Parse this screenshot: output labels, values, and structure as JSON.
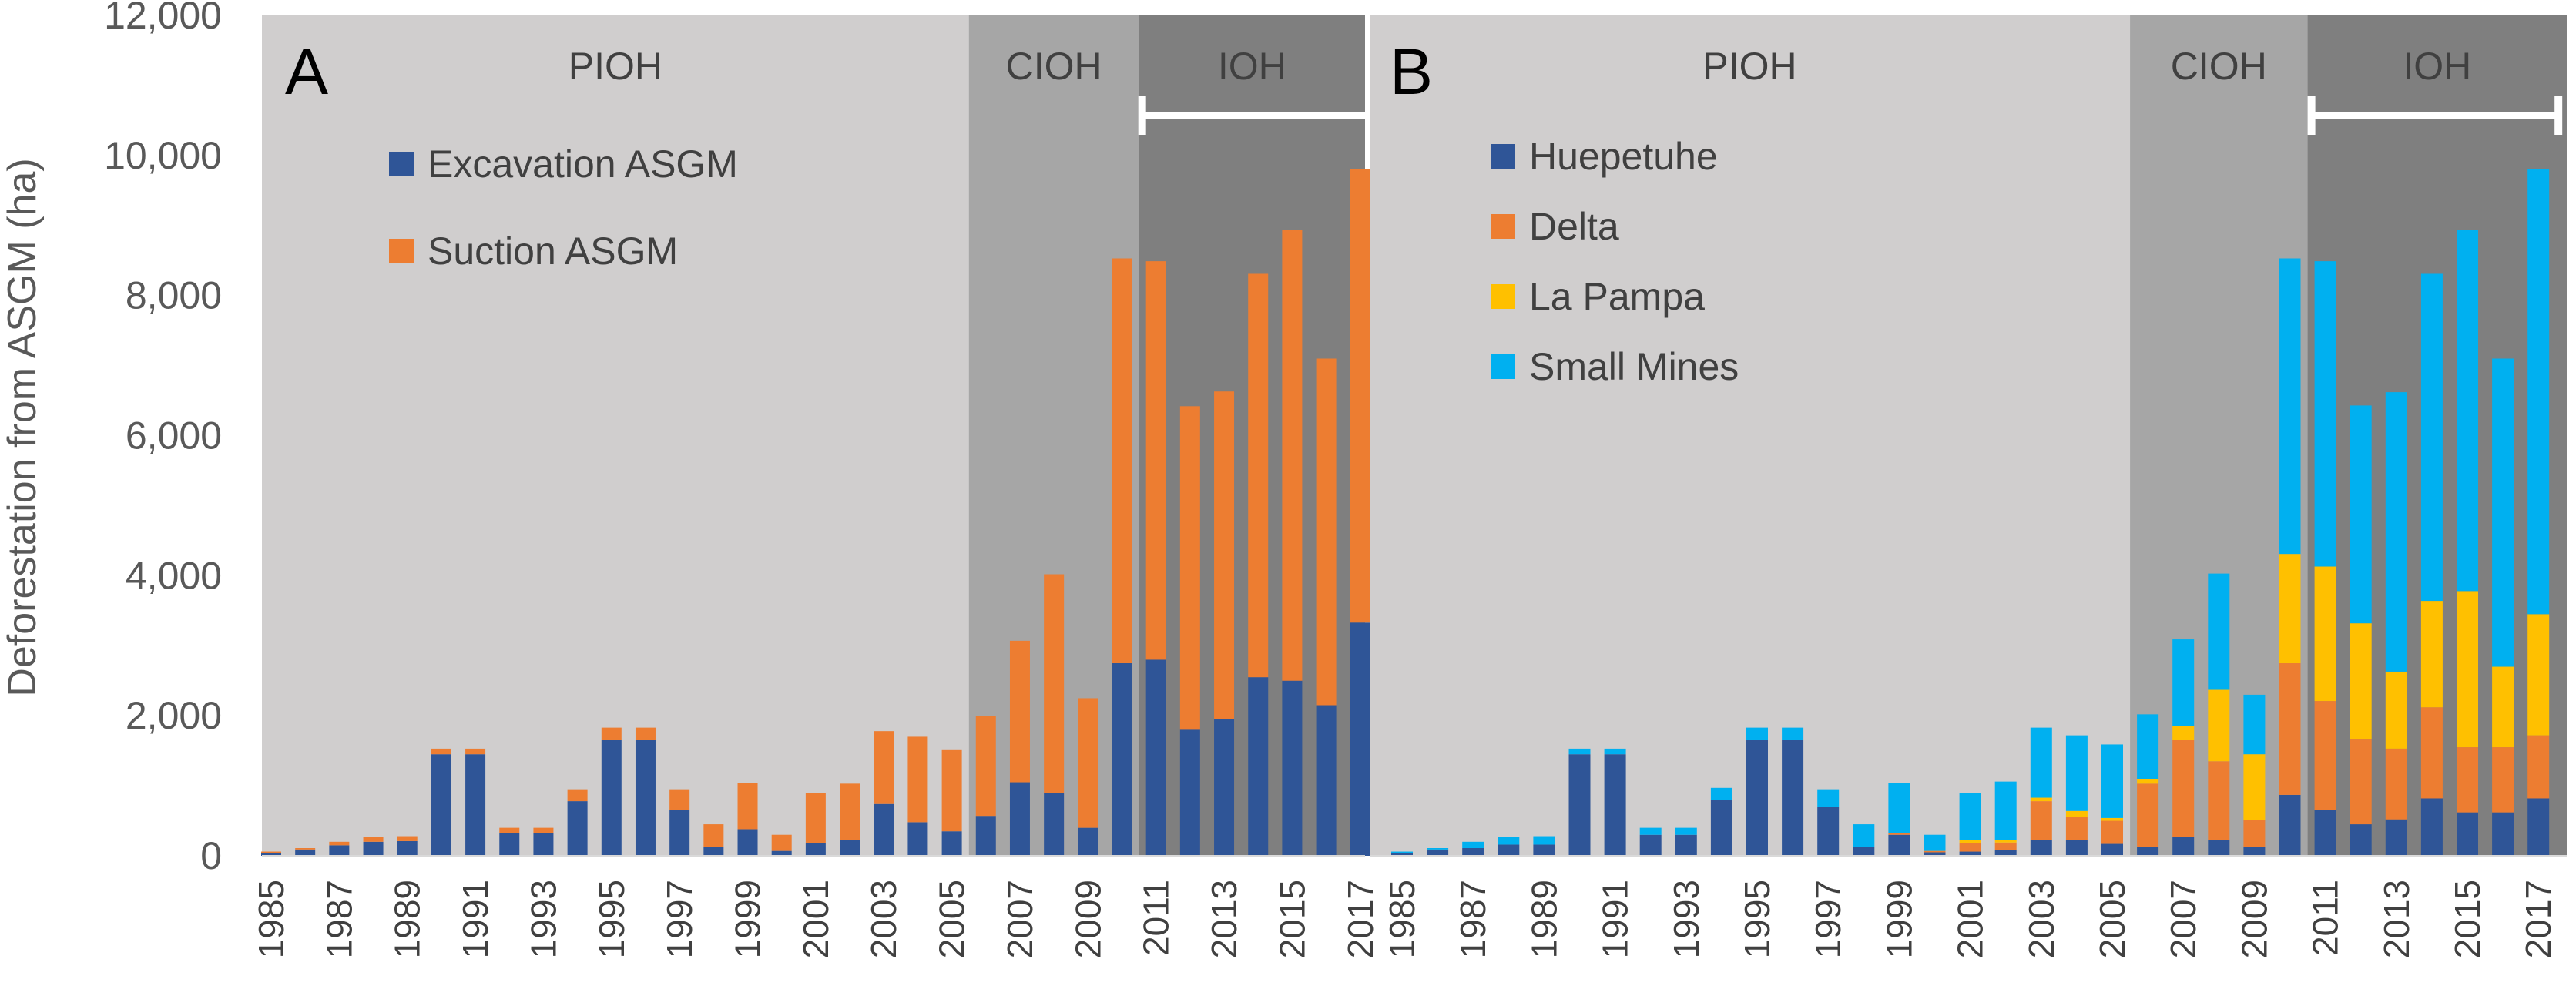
{
  "axis": {
    "ylabel": "Deforestation from ASGM (ha)",
    "ylim": [
      0,
      12000
    ],
    "yticks": [
      "0",
      "2,000",
      "4,000",
      "6,000",
      "8,000",
      "10,000",
      "12,000"
    ]
  },
  "years": [
    1985,
    1986,
    1987,
    1988,
    1989,
    1990,
    1991,
    1992,
    1993,
    1994,
    1995,
    1996,
    1997,
    1998,
    1999,
    2000,
    2001,
    2002,
    2003,
    2004,
    2005,
    2006,
    2007,
    2008,
    2009,
    2010,
    2011,
    2012,
    2013,
    2014,
    2015,
    2016,
    2017
  ],
  "year_tick_labels": [
    "1985",
    "1987",
    "1989",
    "1991",
    "1993",
    "1995",
    "1997",
    "1999",
    "2001",
    "2003",
    "2005",
    "2007",
    "2009",
    "2011",
    "2013",
    "2015",
    "2017"
  ],
  "eras": [
    {
      "label": "PIOH",
      "start_year": 1985,
      "end_year": 2005,
      "color": "#d0cece"
    },
    {
      "label": "CIOH",
      "start_year": 2006,
      "end_year": 2010,
      "color": "#a6a6a6"
    },
    {
      "label": "IOH",
      "start_year": 2011,
      "end_year": 2017,
      "color": "#7f7f7f"
    }
  ],
  "ioh_bracket": {
    "start_year": 2011,
    "end_year": 2017,
    "color": "#ffffff"
  },
  "chart_data": [
    {
      "type": "bar",
      "stacked": true,
      "panel": "A",
      "title": "",
      "xlabel": "",
      "ylabel": "Deforestation from ASGM (ha)",
      "ylim": [
        0,
        12000
      ],
      "legend_position": "top-left",
      "categories": [
        1985,
        1986,
        1987,
        1988,
        1989,
        1990,
        1991,
        1992,
        1993,
        1994,
        1995,
        1996,
        1997,
        1998,
        1999,
        2000,
        2001,
        2002,
        2003,
        2004,
        2005,
        2006,
        2007,
        2008,
        2009,
        2010,
        2011,
        2012,
        2013,
        2014,
        2015,
        2016,
        2017
      ],
      "series": [
        {
          "name": "Excavation ASGM",
          "color": "#2f5597",
          "values": [
            40,
            90,
            150,
            200,
            210,
            1450,
            1450,
            330,
            330,
            780,
            1650,
            1650,
            650,
            130,
            380,
            70,
            180,
            220,
            740,
            480,
            350,
            570,
            1050,
            900,
            400,
            2750,
            2800,
            1800,
            1950,
            2550,
            2500,
            2150,
            3330
          ]
        },
        {
          "name": "Suction ASGM",
          "color": "#ed7d31",
          "values": [
            20,
            20,
            50,
            70,
            70,
            80,
            80,
            70,
            70,
            170,
            180,
            180,
            300,
            320,
            660,
            230,
            720,
            810,
            1040,
            1220,
            1170,
            1430,
            2020,
            3120,
            1850,
            5780,
            5690,
            4620,
            4680,
            5760,
            6440,
            4950,
            6480
          ]
        }
      ]
    },
    {
      "type": "bar",
      "stacked": true,
      "panel": "B",
      "title": "",
      "xlabel": "",
      "ylabel": "",
      "ylim": [
        0,
        12000
      ],
      "legend_position": "top-left",
      "categories": [
        1985,
        1986,
        1987,
        1988,
        1989,
        1990,
        1991,
        1992,
        1993,
        1994,
        1995,
        1996,
        1997,
        1998,
        1999,
        2000,
        2001,
        2002,
        2003,
        2004,
        2005,
        2006,
        2007,
        2008,
        2009,
        2010,
        2011,
        2012,
        2013,
        2014,
        2015,
        2016,
        2017
      ],
      "series": [
        {
          "name": "Huepetuhe",
          "color": "#2f5597",
          "values": [
            40,
            90,
            110,
            160,
            160,
            1450,
            1450,
            300,
            300,
            800,
            1650,
            1650,
            700,
            130,
            300,
            50,
            60,
            80,
            230,
            230,
            170,
            130,
            270,
            230,
            130,
            870,
            650,
            450,
            520,
            820,
            620,
            620,
            820
          ]
        },
        {
          "name": "Delta",
          "color": "#ed7d31",
          "values": [
            0,
            0,
            0,
            0,
            0,
            0,
            0,
            0,
            0,
            0,
            0,
            0,
            0,
            0,
            30,
            20,
            120,
            110,
            550,
            330,
            330,
            900,
            1380,
            1120,
            380,
            1880,
            1560,
            1210,
            1010,
            1300,
            930,
            930,
            900
          ]
        },
        {
          "name": "La Pampa",
          "color": "#ffc000",
          "values": [
            0,
            0,
            0,
            0,
            0,
            0,
            0,
            0,
            0,
            0,
            0,
            0,
            0,
            0,
            0,
            0,
            40,
            40,
            50,
            80,
            40,
            70,
            200,
            1020,
            940,
            1560,
            1920,
            1660,
            1100,
            1520,
            2230,
            1150,
            1730
          ]
        },
        {
          "name": "Small Mines",
          "color": "#00b0f0",
          "values": [
            20,
            20,
            90,
            110,
            120,
            80,
            80,
            100,
            100,
            170,
            180,
            180,
            250,
            320,
            710,
            230,
            680,
            830,
            1000,
            1080,
            1050,
            920,
            1240,
            1660,
            850,
            4220,
            4360,
            3110,
            3990,
            4670,
            5160,
            4400,
            6360
          ]
        }
      ]
    }
  ]
}
